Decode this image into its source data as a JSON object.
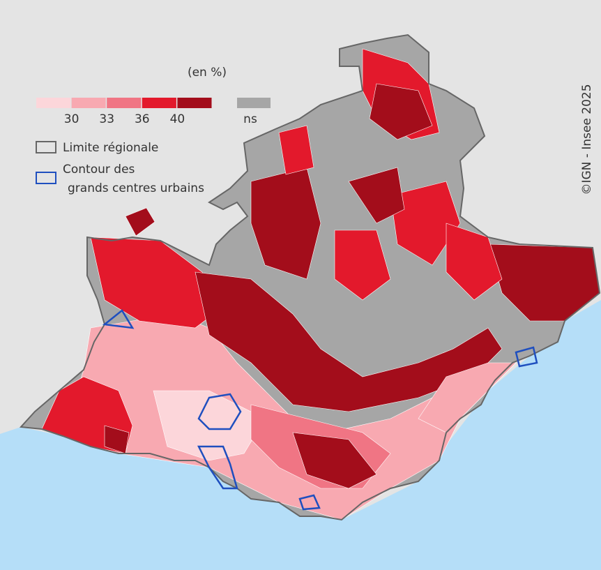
{
  "legend": {
    "unit": "(en %)",
    "classes": [
      {
        "color": "#fcd6da"
      },
      {
        "color": "#f8a9b1"
      },
      {
        "color": "#f07584"
      },
      {
        "color": "#e3192c"
      },
      {
        "color": "#a30d1b"
      }
    ],
    "breaks": [
      30,
      33,
      36,
      40
    ],
    "ns": {
      "label": "ns",
      "color": "#a6a6a6"
    },
    "region_limit": "Limite régionale",
    "urban_contour": [
      "Contour des",
      "grands centres urbains"
    ]
  },
  "credit": "©IGN - Insee 2025"
}
